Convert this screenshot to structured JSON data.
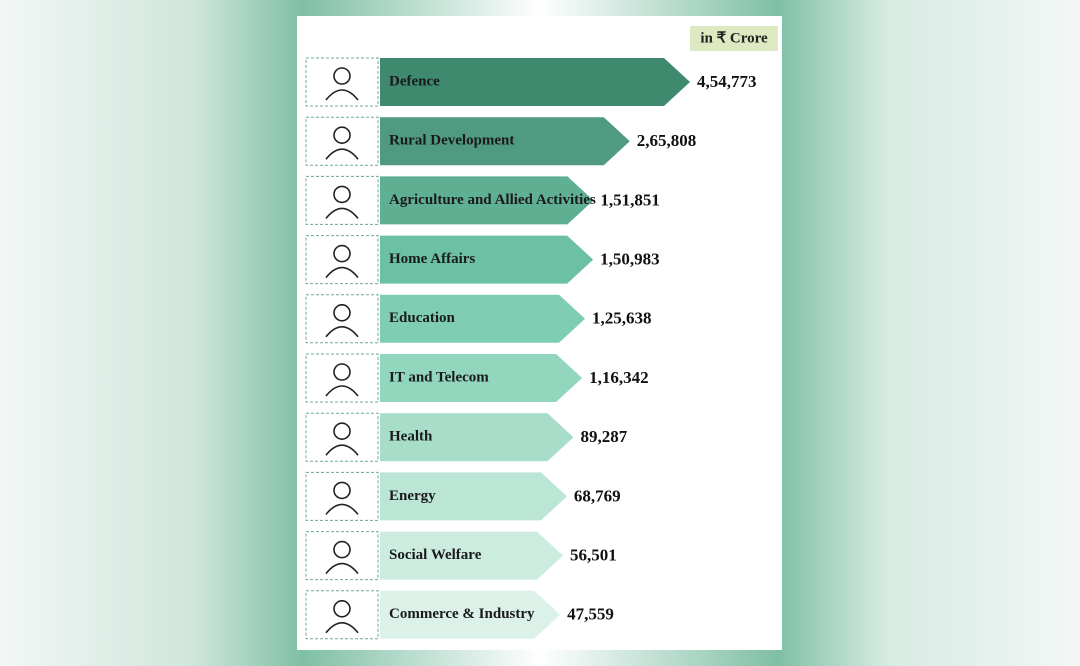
{
  "chart_data": {
    "type": "bar",
    "unit_label": "in ₹ Crore",
    "categories": [
      "Defence",
      "Rural Development",
      "Agriculture and Allied Activities",
      "Home Affairs",
      "Education",
      "IT and Telecom",
      "Health",
      "Energy",
      "Social Welfare",
      "Commerce & Industry"
    ],
    "values": [
      454773,
      265808,
      151851,
      150983,
      125638,
      116342,
      89287,
      68769,
      56501,
      47559
    ],
    "value_labels": [
      "4,54,773",
      "2,65,808",
      "1,51,851",
      "1,50,983",
      "1,25,638",
      "1,16,342",
      "89,287",
      "68,769",
      "56,501",
      "47,559"
    ],
    "colors": [
      "#3f8a6f",
      "#4f9a80",
      "#5fb093",
      "#6cc0a3",
      "#7fcdb2",
      "#93d6be",
      "#a7ddc9",
      "#bbe5d5",
      "#cdece0",
      "#dcf2e9"
    ]
  }
}
